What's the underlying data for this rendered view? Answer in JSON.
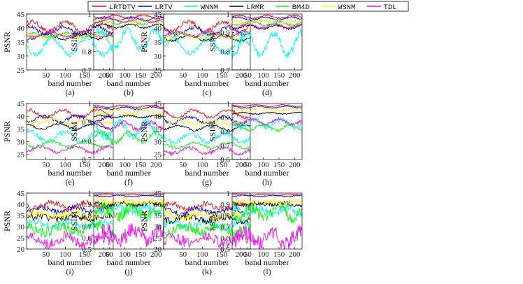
{
  "legend": [
    {
      "name": "LRTDTV",
      "color": "#ff0000"
    },
    {
      "name": "LRTV",
      "color": "#0000ff"
    },
    {
      "name": "WNNM",
      "color": "#00ffff"
    },
    {
      "name": "LRMR",
      "color": "#000000"
    },
    {
      "name": "BM4D",
      "color": "#00ff00"
    },
    {
      "name": "WSNM",
      "color": "#ffff00"
    },
    {
      "name": "TDL",
      "color": "#ff00ff"
    }
  ],
  "chart_data": [
    {
      "caption": "(a)",
      "type": "line",
      "metric": "PSNR",
      "ylabel": "PSNR",
      "xlabel": "band number",
      "xlim": [
        0,
        224
      ],
      "ylim": [
        25,
        45
      ],
      "yticks": [
        25,
        30,
        35,
        40,
        45
      ],
      "xticks": [
        50,
        100,
        150,
        200
      ],
      "series": [
        {
          "name": "LRTDTV",
          "color": "#ff0000",
          "level": 40.5,
          "amp": 1.8,
          "noise": 0.8
        },
        {
          "name": "LRTV",
          "color": "#0000ff",
          "level": 39.0,
          "amp": 1.6,
          "noise": 0.7
        },
        {
          "name": "WNNM",
          "color": "#00ffff",
          "level": 33.5,
          "amp": 3.0,
          "noise": 1.0
        },
        {
          "name": "LRMR",
          "color": "#000000",
          "level": 37.0,
          "amp": 1.0,
          "noise": 0.5
        },
        {
          "name": "BM4D",
          "color": "#00ff00",
          "level": 37.5,
          "amp": 0.8,
          "noise": 0.4
        },
        {
          "name": "WSNM",
          "color": "#ffff00",
          "level": 37.2,
          "amp": 0.8,
          "noise": 0.4
        },
        {
          "name": "TDL",
          "color": "#ff00ff",
          "level": 37.8,
          "amp": 0.9,
          "noise": 0.4
        }
      ]
    },
    {
      "caption": "(b)",
      "type": "line",
      "metric": "SSIM",
      "ylabel": "SSIM",
      "xlabel": "band number",
      "xlim": [
        0,
        224
      ],
      "ylim": [
        0.7,
        1.0
      ],
      "yticks": [
        0.7,
        0.8,
        0.9,
        1.0
      ],
      "xticks": [
        50,
        100,
        150,
        200
      ],
      "series": [
        {
          "name": "LRTDTV",
          "color": "#ff0000",
          "level": 0.985,
          "amp": 0.01,
          "noise": 0.004
        },
        {
          "name": "LRTV",
          "color": "#0000ff",
          "level": 0.975,
          "amp": 0.01,
          "noise": 0.004
        },
        {
          "name": "WNNM",
          "color": "#00ffff",
          "level": 0.86,
          "amp": 0.05,
          "noise": 0.02
        },
        {
          "name": "LRMR",
          "color": "#000000",
          "level": 0.935,
          "amp": 0.01,
          "noise": 0.005
        },
        {
          "name": "BM4D",
          "color": "#00ff00",
          "level": 0.955,
          "amp": 0.01,
          "noise": 0.005
        },
        {
          "name": "WSNM",
          "color": "#ffff00",
          "level": 0.96,
          "amp": 0.01,
          "noise": 0.005
        },
        {
          "name": "TDL",
          "color": "#ff00ff",
          "level": 0.965,
          "amp": 0.01,
          "noise": 0.005
        }
      ]
    },
    {
      "caption": "(c)",
      "type": "line",
      "metric": "PSNR",
      "ylabel": "PSNR",
      "xlabel": "band number",
      "xlim": [
        0,
        224
      ],
      "ylim": [
        25,
        45
      ],
      "yticks": [
        25,
        30,
        35,
        40,
        45
      ],
      "xticks": [
        50,
        100,
        150,
        200
      ],
      "series": [
        {
          "name": "LRTDTV",
          "color": "#ff0000",
          "level": 40.5,
          "amp": 1.8,
          "noise": 0.8
        },
        {
          "name": "LRTV",
          "color": "#0000ff",
          "level": 38.8,
          "amp": 1.5,
          "noise": 0.7
        },
        {
          "name": "WNNM",
          "color": "#00ffff",
          "level": 33.5,
          "amp": 2.5,
          "noise": 1.0
        },
        {
          "name": "LRMR",
          "color": "#000000",
          "level": 36.5,
          "amp": 1.0,
          "noise": 0.5
        },
        {
          "name": "BM4D",
          "color": "#00ff00",
          "level": 37.5,
          "amp": 0.8,
          "noise": 0.4
        },
        {
          "name": "WSNM",
          "color": "#ffff00",
          "level": 37.0,
          "amp": 0.8,
          "noise": 0.4
        },
        {
          "name": "TDL",
          "color": "#ff00ff",
          "level": 37.8,
          "amp": 0.9,
          "noise": 0.4
        }
      ]
    },
    {
      "caption": "(d)",
      "type": "line",
      "metric": "SSIM",
      "ylabel": "SSIM",
      "xlabel": "band number",
      "xlim": [
        0,
        224
      ],
      "ylim": [
        0.7,
        1.0
      ],
      "yticks": [
        0.7,
        0.8,
        0.9,
        1.0
      ],
      "xticks": [
        50,
        100,
        150,
        200
      ],
      "series": [
        {
          "name": "LRTDTV",
          "color": "#ff0000",
          "level": 0.985,
          "amp": 0.008,
          "noise": 0.004
        },
        {
          "name": "LRTV",
          "color": "#0000ff",
          "level": 0.975,
          "amp": 0.008,
          "noise": 0.004
        },
        {
          "name": "WNNM",
          "color": "#00ffff",
          "level": 0.84,
          "amp": 0.06,
          "noise": 0.02
        },
        {
          "name": "LRMR",
          "color": "#000000",
          "level": 0.93,
          "amp": 0.01,
          "noise": 0.005
        },
        {
          "name": "BM4D",
          "color": "#00ff00",
          "level": 0.95,
          "amp": 0.01,
          "noise": 0.006
        },
        {
          "name": "WSNM",
          "color": "#ffff00",
          "level": 0.955,
          "amp": 0.01,
          "noise": 0.006
        },
        {
          "name": "TDL",
          "color": "#ff00ff",
          "level": 0.935,
          "amp": 0.01,
          "noise": 0.006
        }
      ]
    },
    {
      "caption": "(e)",
      "type": "line",
      "metric": "PSNR",
      "ylabel": "PSNR",
      "xlabel": "band number",
      "xlim": [
        0,
        224
      ],
      "ylim": [
        23,
        45
      ],
      "yticks": [
        25,
        30,
        35,
        40,
        45
      ],
      "xticks": [
        50,
        100,
        150,
        200
      ],
      "series": [
        {
          "name": "LRTDTV",
          "color": "#ff0000",
          "level": 41.0,
          "amp": 1.5,
          "noise": 0.6
        },
        {
          "name": "LRTV",
          "color": "#0000ff",
          "level": 39.0,
          "amp": 1.3,
          "noise": 0.6
        },
        {
          "name": "WNNM",
          "color": "#00ffff",
          "level": 32.0,
          "amp": 1.8,
          "noise": 1.0
        },
        {
          "name": "LRMR",
          "color": "#000000",
          "level": 36.0,
          "amp": 1.0,
          "noise": 0.4
        },
        {
          "name": "BM4D",
          "color": "#00ff00",
          "level": 29.0,
          "amp": 1.0,
          "noise": 0.6
        },
        {
          "name": "WSNM",
          "color": "#ffff00",
          "level": 38.0,
          "amp": 0.8,
          "noise": 0.5
        },
        {
          "name": "TDL",
          "color": "#ff00ff",
          "level": 27.0,
          "amp": 1.2,
          "noise": 0.7
        }
      ]
    },
    {
      "caption": "(f)",
      "type": "line",
      "metric": "SSIM",
      "ylabel": "SSIM",
      "xlabel": "band number",
      "xlim": [
        0,
        224
      ],
      "ylim": [
        0.7,
        1.0
      ],
      "yticks": [
        0.7,
        0.8,
        0.9,
        1.0
      ],
      "xticks": [
        50,
        100,
        150,
        200
      ],
      "series": [
        {
          "name": "LRTDTV",
          "color": "#ff0000",
          "level": 0.985,
          "amp": 0.006,
          "noise": 0.003
        },
        {
          "name": "LRTV",
          "color": "#0000ff",
          "level": 0.975,
          "amp": 0.006,
          "noise": 0.003
        },
        {
          "name": "WNNM",
          "color": "#00ffff",
          "level": 0.86,
          "amp": 0.04,
          "noise": 0.02
        },
        {
          "name": "LRMR",
          "color": "#000000",
          "level": 0.93,
          "amp": 0.006,
          "noise": 0.004
        },
        {
          "name": "BM4D",
          "color": "#00ff00",
          "level": 0.82,
          "amp": 0.03,
          "noise": 0.01
        },
        {
          "name": "WSNM",
          "color": "#ffff00",
          "level": 0.955,
          "amp": 0.01,
          "noise": 0.005
        },
        {
          "name": "TDL",
          "color": "#ff00ff",
          "level": 0.88,
          "amp": 0.02,
          "noise": 0.01
        }
      ]
    },
    {
      "caption": "(g)",
      "type": "line",
      "metric": "PSNR",
      "ylabel": "PSNR",
      "xlabel": "band number",
      "xlim": [
        0,
        224
      ],
      "ylim": [
        23,
        45
      ],
      "yticks": [
        25,
        30,
        35,
        40,
        45
      ],
      "xticks": [
        50,
        100,
        150,
        200
      ],
      "series": [
        {
          "name": "LRTDTV",
          "color": "#ff0000",
          "level": 41.0,
          "amp": 1.5,
          "noise": 0.6
        },
        {
          "name": "LRTV",
          "color": "#0000ff",
          "level": 38.5,
          "amp": 1.3,
          "noise": 0.6
        },
        {
          "name": "WNNM",
          "color": "#00ffff",
          "level": 31.5,
          "amp": 1.8,
          "noise": 1.0
        },
        {
          "name": "LRMR",
          "color": "#000000",
          "level": 35.5,
          "amp": 1.0,
          "noise": 0.4
        },
        {
          "name": "BM4D",
          "color": "#00ff00",
          "level": 28.5,
          "amp": 1.0,
          "noise": 0.6
        },
        {
          "name": "WSNM",
          "color": "#ffff00",
          "level": 37.5,
          "amp": 0.8,
          "noise": 0.5
        },
        {
          "name": "TDL",
          "color": "#ff00ff",
          "level": 26.5,
          "amp": 1.2,
          "noise": 0.7
        }
      ]
    },
    {
      "caption": "(h)",
      "type": "line",
      "metric": "SSIM",
      "ylabel": "SSIM",
      "xlabel": "band number",
      "xlim": [
        0,
        224
      ],
      "ylim": [
        0.6,
        1.0
      ],
      "yticks": [
        0.6,
        0.7,
        0.8,
        0.9,
        1.0
      ],
      "xticks": [
        50,
        100,
        150,
        200
      ],
      "series": [
        {
          "name": "LRTDTV",
          "color": "#ff0000",
          "level": 0.985,
          "amp": 0.006,
          "noise": 0.003
        },
        {
          "name": "LRTV",
          "color": "#0000ff",
          "level": 0.975,
          "amp": 0.006,
          "noise": 0.003
        },
        {
          "name": "WNNM",
          "color": "#00ffff",
          "level": 0.86,
          "amp": 0.03,
          "noise": 0.02
        },
        {
          "name": "LRMR",
          "color": "#000000",
          "level": 0.93,
          "amp": 0.006,
          "noise": 0.004
        },
        {
          "name": "BM4D",
          "color": "#00ff00",
          "level": 0.83,
          "amp": 0.02,
          "noise": 0.01
        },
        {
          "name": "WSNM",
          "color": "#ffff00",
          "level": 0.955,
          "amp": 0.01,
          "noise": 0.005
        },
        {
          "name": "TDL",
          "color": "#ff00ff",
          "level": 0.87,
          "amp": 0.02,
          "noise": 0.01
        }
      ]
    },
    {
      "caption": "(i)",
      "type": "line",
      "metric": "PSNR",
      "ylabel": "PSNR",
      "xlabel": "band number",
      "xlim": [
        0,
        224
      ],
      "ylim": [
        20,
        45
      ],
      "yticks": [
        20,
        25,
        30,
        35,
        40,
        45
      ],
      "xticks": [
        50,
        100,
        150,
        200
      ],
      "series": [
        {
          "name": "LRTDTV",
          "color": "#ff0000",
          "level": 39.5,
          "amp": 1.2,
          "noise": 1.2
        },
        {
          "name": "LRTV",
          "color": "#0000ff",
          "level": 37.5,
          "amp": 1.2,
          "noise": 1.2
        },
        {
          "name": "WNNM",
          "color": "#00ffff",
          "level": 31.0,
          "amp": 1.2,
          "noise": 1.5
        },
        {
          "name": "LRMR",
          "color": "#000000",
          "level": 34.0,
          "amp": 1.0,
          "noise": 1.5
        },
        {
          "name": "BM4D",
          "color": "#00ff00",
          "level": 29.0,
          "amp": 1.5,
          "noise": 2.5
        },
        {
          "name": "WSNM",
          "color": "#ffff00",
          "level": 35.5,
          "amp": 1.0,
          "noise": 1.5
        },
        {
          "name": "TDL",
          "color": "#ff00ff",
          "level": 24.0,
          "amp": 1.5,
          "noise": 2.5
        }
      ]
    },
    {
      "caption": "(j)",
      "type": "line",
      "metric": "SSIM",
      "ylabel": "SSIM",
      "xlabel": "band number",
      "xlim": [
        0,
        224
      ],
      "ylim": [
        0.5,
        1.0
      ],
      "yticks": [
        0.5,
        0.6,
        0.7,
        0.8,
        0.9,
        1.0
      ],
      "xticks": [
        50,
        100,
        150,
        200
      ],
      "series": [
        {
          "name": "LRTDTV",
          "color": "#ff0000",
          "level": 0.985,
          "amp": 0.005,
          "noise": 0.004
        },
        {
          "name": "LRTV",
          "color": "#0000ff",
          "level": 0.975,
          "amp": 0.005,
          "noise": 0.004
        },
        {
          "name": "WNNM",
          "color": "#00ffff",
          "level": 0.85,
          "amp": 0.03,
          "noise": 0.03
        },
        {
          "name": "LRMR",
          "color": "#000000",
          "level": 0.9,
          "amp": 0.01,
          "noise": 0.02
        },
        {
          "name": "BM4D",
          "color": "#00ff00",
          "level": 0.83,
          "amp": 0.04,
          "noise": 0.05
        },
        {
          "name": "WSNM",
          "color": "#ffff00",
          "level": 0.92,
          "amp": 0.01,
          "noise": 0.02
        },
        {
          "name": "TDL",
          "color": "#ff00ff",
          "level": 0.62,
          "amp": 0.05,
          "noise": 0.07
        }
      ]
    },
    {
      "caption": "(k)",
      "type": "line",
      "metric": "PSNR",
      "ylabel": "PSNR",
      "xlabel": "band number",
      "xlim": [
        0,
        224
      ],
      "ylim": [
        20,
        45
      ],
      "yticks": [
        20,
        25,
        30,
        35,
        40,
        45
      ],
      "xticks": [
        50,
        100,
        150,
        200
      ],
      "series": [
        {
          "name": "LRTDTV",
          "color": "#ff0000",
          "level": 39.0,
          "amp": 1.2,
          "noise": 1.2
        },
        {
          "name": "LRTV",
          "color": "#0000ff",
          "level": 37.0,
          "amp": 1.2,
          "noise": 1.2
        },
        {
          "name": "WNNM",
          "color": "#00ffff",
          "level": 31.0,
          "amp": 1.2,
          "noise": 1.5
        },
        {
          "name": "LRMR",
          "color": "#000000",
          "level": 33.5,
          "amp": 1.0,
          "noise": 1.5
        },
        {
          "name": "BM4D",
          "color": "#00ff00",
          "level": 29.0,
          "amp": 1.5,
          "noise": 2.5
        },
        {
          "name": "WSNM",
          "color": "#ffff00",
          "level": 35.0,
          "amp": 1.0,
          "noise": 1.5
        },
        {
          "name": "TDL",
          "color": "#ff00ff",
          "level": 24.0,
          "amp": 1.5,
          "noise": 2.5
        }
      ]
    },
    {
      "caption": "(l)",
      "type": "line",
      "metric": "SSIM",
      "ylabel": "SSIM",
      "xlabel": "band number",
      "xlim": [
        0,
        224
      ],
      "ylim": [
        0.5,
        1.0
      ],
      "yticks": [
        0.5,
        0.6,
        0.7,
        0.8,
        0.9,
        1.0
      ],
      "xticks": [
        50,
        100,
        150,
        200
      ],
      "series": [
        {
          "name": "LRTDTV",
          "color": "#ff0000",
          "level": 0.985,
          "amp": 0.005,
          "noise": 0.004
        },
        {
          "name": "LRTV",
          "color": "#0000ff",
          "level": 0.975,
          "amp": 0.005,
          "noise": 0.004
        },
        {
          "name": "WNNM",
          "color": "#00ffff",
          "level": 0.84,
          "amp": 0.03,
          "noise": 0.03
        },
        {
          "name": "LRMR",
          "color": "#000000",
          "level": 0.9,
          "amp": 0.01,
          "noise": 0.02
        },
        {
          "name": "BM4D",
          "color": "#00ff00",
          "level": 0.82,
          "amp": 0.04,
          "noise": 0.05
        },
        {
          "name": "WSNM",
          "color": "#ffff00",
          "level": 0.92,
          "amp": 0.01,
          "noise": 0.02
        },
        {
          "name": "TDL",
          "color": "#ff00ff",
          "level": 0.6,
          "amp": 0.05,
          "noise": 0.07
        }
      ]
    }
  ]
}
